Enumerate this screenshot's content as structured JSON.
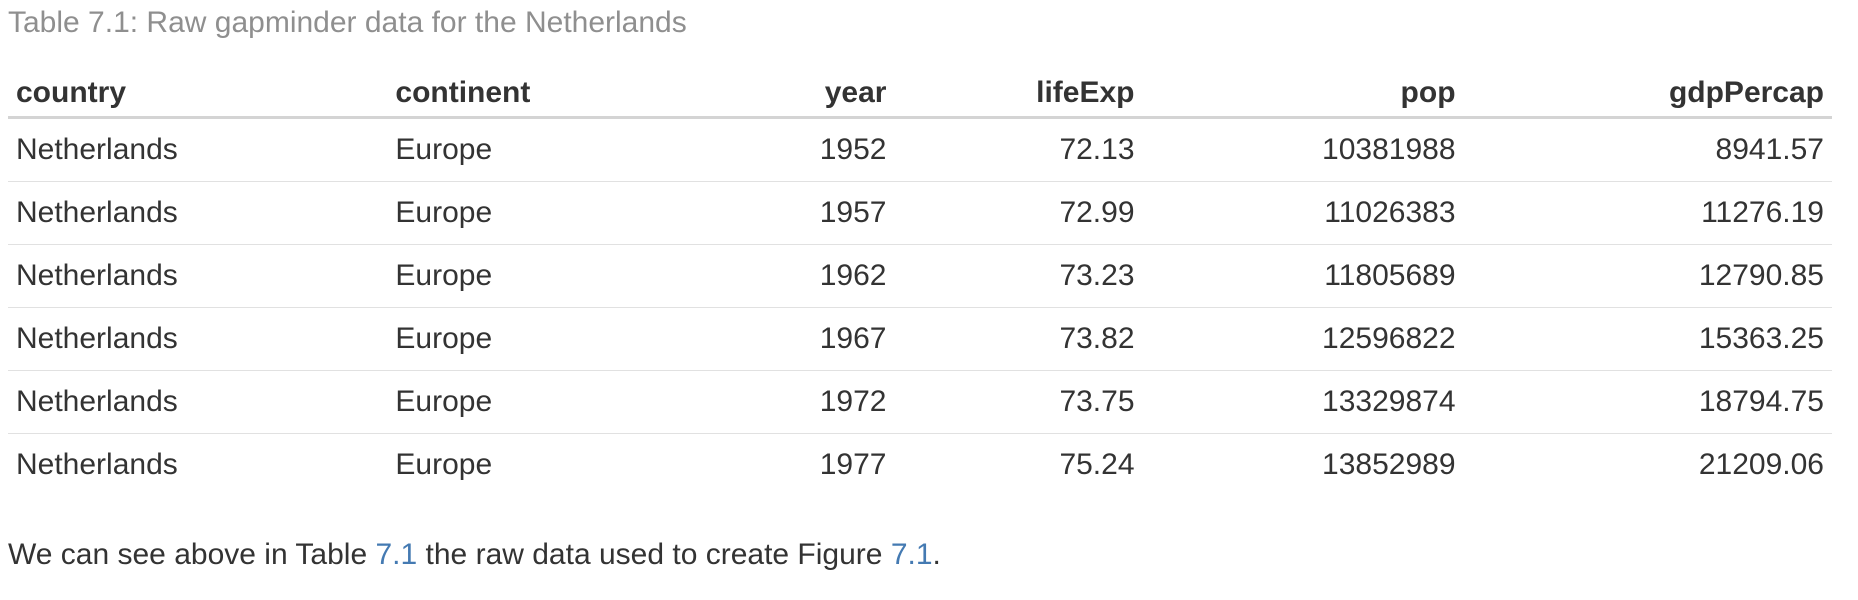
{
  "page": {
    "caption": "Table 7.1: Raw gapminder data for the Netherlands",
    "table": {
      "columns": [
        {
          "key": "country",
          "label": "country",
          "align": "left"
        },
        {
          "key": "continent",
          "label": "continent",
          "align": "left"
        },
        {
          "key": "year",
          "label": "year",
          "align": "right"
        },
        {
          "key": "lifeExp",
          "label": "lifeExp",
          "align": "right"
        },
        {
          "key": "pop",
          "label": "pop",
          "align": "right"
        },
        {
          "key": "gdpPercap",
          "label": "gdpPercap",
          "align": "right"
        }
      ],
      "rows": [
        [
          "Netherlands",
          "Europe",
          "1952",
          "72.13",
          "10381988",
          "8941.57"
        ],
        [
          "Netherlands",
          "Europe",
          "1957",
          "72.99",
          "11026383",
          "11276.19"
        ],
        [
          "Netherlands",
          "Europe",
          "1962",
          "73.23",
          "11805689",
          "12790.85"
        ],
        [
          "Netherlands",
          "Europe",
          "1967",
          "73.82",
          "12596822",
          "15363.25"
        ],
        [
          "Netherlands",
          "Europe",
          "1972",
          "73.75",
          "13329874",
          "18794.75"
        ],
        [
          "Netherlands",
          "Europe",
          "1977",
          "75.24",
          "13852989",
          "21209.06"
        ]
      ]
    },
    "paragraph": {
      "parts": [
        {
          "type": "text",
          "text": "We can see above in Table "
        },
        {
          "type": "link",
          "text": "7.1",
          "name": "table-ref-link"
        },
        {
          "type": "text",
          "text": " the raw data used to create Figure "
        },
        {
          "type": "link",
          "text": "7.1",
          "name": "figure-ref-link"
        },
        {
          "type": "text",
          "text": "."
        }
      ]
    },
    "colors": {
      "background": "#ffffff",
      "text": "#333333",
      "caption": "#8f8f8f",
      "link": "#447ab2",
      "header_border": "#d4d4d4",
      "row_border": "#e1e1e1"
    }
  }
}
